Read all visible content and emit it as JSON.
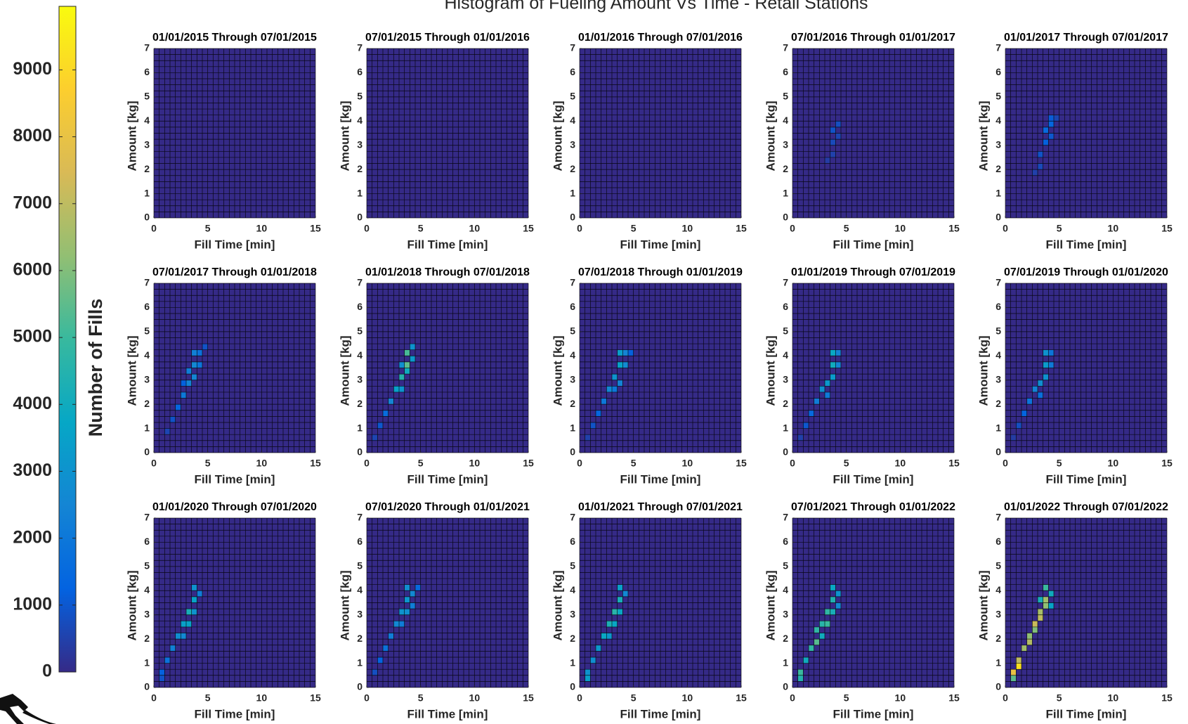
{
  "figure": {
    "title": "Histogram of Fueling Amount Vs Time - Retail Stations",
    "colorbar": {
      "label": "Number of Fills",
      "clim": [
        0,
        9950
      ],
      "ticks": [
        0,
        1000,
        2000,
        3000,
        4000,
        5000,
        6000,
        7000,
        8000,
        9000
      ],
      "colormap": "parula"
    }
  },
  "chart_data": [
    {
      "type": "heatmap",
      "title": "01/01/2015 Through 07/01/2015",
      "xlabel": "Fill Time [min]",
      "ylabel": "Amount [kg]",
      "xlim": [
        0,
        15
      ],
      "ylim": [
        0,
        7
      ],
      "xticks": [
        0,
        5,
        10,
        15
      ],
      "yticks": [
        0,
        1,
        2,
        3,
        4,
        5,
        6,
        7
      ],
      "xbin": 0.5,
      "ybin": 0.25,
      "cells": []
    },
    {
      "type": "heatmap",
      "title": "07/01/2015 Through 01/01/2016",
      "xlabel": "Fill Time [min]",
      "ylabel": "Amount [kg]",
      "xlim": [
        0,
        15
      ],
      "ylim": [
        0,
        7
      ],
      "xticks": [
        0,
        5,
        10,
        15
      ],
      "yticks": [
        0,
        1,
        2,
        3,
        4,
        5,
        6,
        7
      ],
      "xbin": 0.5,
      "ybin": 0.25,
      "cells": []
    },
    {
      "type": "heatmap",
      "title": "01/01/2016 Through 07/01/2016",
      "xlabel": "Fill Time [min]",
      "ylabel": "Amount [kg]",
      "xlim": [
        0,
        15
      ],
      "ylim": [
        0,
        7
      ],
      "xticks": [
        0,
        5,
        10,
        15
      ],
      "yticks": [
        0,
        1,
        2,
        3,
        4,
        5,
        6,
        7
      ],
      "xbin": 0.5,
      "ybin": 0.25,
      "cells": []
    },
    {
      "type": "heatmap",
      "title": "07/01/2016 Through 01/01/2017",
      "xlabel": "Fill Time [min]",
      "ylabel": "Amount [kg]",
      "xlim": [
        0,
        15
      ],
      "ylim": [
        0,
        7
      ],
      "xticks": [
        0,
        5,
        10,
        15
      ],
      "yticks": [
        0,
        1,
        2,
        3,
        4,
        5,
        6,
        7
      ],
      "xbin": 0.5,
      "ybin": 0.25,
      "cells": [
        [
          3.5,
          3,
          700
        ],
        [
          3.5,
          3.5,
          900
        ],
        [
          4,
          3.75,
          800
        ],
        [
          3.5,
          2.5,
          500
        ],
        [
          3,
          2.25,
          400
        ],
        [
          4,
          3.25,
          600
        ]
      ]
    },
    {
      "type": "heatmap",
      "title": "01/01/2017 Through 07/01/2017",
      "xlabel": "Fill Time [min]",
      "ylabel": "Amount [kg]",
      "xlim": [
        0,
        15
      ],
      "ylim": [
        0,
        7
      ],
      "xticks": [
        0,
        5,
        10,
        15
      ],
      "yticks": [
        0,
        1,
        2,
        3,
        4,
        5,
        6,
        7
      ],
      "xbin": 0.5,
      "ybin": 0.25,
      "cells": [
        [
          3.5,
          3,
          1200
        ],
        [
          3.5,
          3.5,
          1500
        ],
        [
          4,
          3.75,
          1400
        ],
        [
          4,
          4,
          1100
        ],
        [
          3,
          2.5,
          900
        ],
        [
          3,
          2,
          700
        ],
        [
          2.5,
          1.75,
          500
        ],
        [
          4,
          3.25,
          1000
        ],
        [
          4.5,
          4,
          600
        ]
      ]
    },
    {
      "type": "heatmap",
      "title": "07/01/2017 Through 01/01/2018",
      "xlabel": "Fill Time [min]",
      "ylabel": "Amount [kg]",
      "xlim": [
        0,
        15
      ],
      "ylim": [
        0,
        7
      ],
      "xticks": [
        0,
        5,
        10,
        15
      ],
      "yticks": [
        0,
        1,
        2,
        3,
        4,
        5,
        6,
        7
      ],
      "xbin": 0.5,
      "ybin": 0.25,
      "cells": [
        [
          1,
          0.75,
          600
        ],
        [
          1.5,
          1.25,
          900
        ],
        [
          2,
          1.75,
          1400
        ],
        [
          2.5,
          2.25,
          2000
        ],
        [
          3,
          2.75,
          2400
        ],
        [
          3,
          3.25,
          2200
        ],
        [
          3.5,
          3.5,
          2600
        ],
        [
          3.5,
          4,
          2300
        ],
        [
          4,
          4,
          1800
        ],
        [
          4,
          3.5,
          1900
        ],
        [
          3.5,
          3,
          2500
        ],
        [
          2.5,
          2.75,
          1200
        ],
        [
          4.5,
          4.25,
          900
        ]
      ]
    },
    {
      "type": "heatmap",
      "title": "01/01/2018 Through 07/01/2018",
      "xlabel": "Fill Time [min]",
      "ylabel": "Amount [kg]",
      "xlim": [
        0,
        15
      ],
      "ylim": [
        0,
        7
      ],
      "xticks": [
        0,
        5,
        10,
        15
      ],
      "yticks": [
        0,
        1,
        2,
        3,
        4,
        5,
        6,
        7
      ],
      "xbin": 0.5,
      "ybin": 0.25,
      "cells": [
        [
          0.5,
          0.5,
          600
        ],
        [
          1,
          1,
          1000
        ],
        [
          1.5,
          1.5,
          1600
        ],
        [
          2,
          2,
          2500
        ],
        [
          2.5,
          2.5,
          3500
        ],
        [
          3,
          3,
          4500
        ],
        [
          3,
          2.5,
          3000
        ],
        [
          3.5,
          3.5,
          5500
        ],
        [
          3.5,
          4,
          5200
        ],
        [
          3.5,
          3.25,
          4000
        ],
        [
          4,
          4.25,
          3000
        ],
        [
          4,
          3.75,
          3200
        ],
        [
          3,
          3.5,
          2800
        ]
      ]
    },
    {
      "type": "heatmap",
      "title": "07/01/2018 Through 01/01/2019",
      "xlabel": "Fill Time [min]",
      "ylabel": "Amount [kg]",
      "xlim": [
        0,
        15
      ],
      "ylim": [
        0,
        7
      ],
      "xticks": [
        0,
        5,
        10,
        15
      ],
      "yticks": [
        0,
        1,
        2,
        3,
        4,
        5,
        6,
        7
      ],
      "xbin": 0.5,
      "ybin": 0.25,
      "cells": [
        [
          0.5,
          0.5,
          500
        ],
        [
          1,
          1,
          900
        ],
        [
          1.5,
          1.5,
          1400
        ],
        [
          2,
          2,
          2000
        ],
        [
          2.5,
          2.5,
          2600
        ],
        [
          3,
          3,
          3000
        ],
        [
          3.5,
          3.5,
          3600
        ],
        [
          3.5,
          4,
          3400
        ],
        [
          3.5,
          2.75,
          2400
        ],
        [
          4,
          4,
          2500
        ],
        [
          4,
          3.5,
          2700
        ],
        [
          3,
          2.5,
          2000
        ],
        [
          4.5,
          4,
          1200
        ]
      ]
    },
    {
      "type": "heatmap",
      "title": "01/01/2019 Through 07/01/2019",
      "xlabel": "Fill Time [min]",
      "ylabel": "Amount [kg]",
      "xlim": [
        0,
        15
      ],
      "ylim": [
        0,
        7
      ],
      "xticks": [
        0,
        5,
        10,
        15
      ],
      "yticks": [
        0,
        1,
        2,
        3,
        4,
        5,
        6,
        7
      ],
      "xbin": 0.5,
      "ybin": 0.25,
      "cells": [
        [
          0.5,
          0.5,
          500
        ],
        [
          1,
          1,
          1000
        ],
        [
          1.5,
          1.5,
          1500
        ],
        [
          2,
          2,
          2200
        ],
        [
          2.5,
          2.5,
          2800
        ],
        [
          3,
          2.75,
          3200
        ],
        [
          3.5,
          3.5,
          4000
        ],
        [
          3.5,
          4,
          3800
        ],
        [
          3.5,
          3,
          3300
        ],
        [
          4,
          4,
          2400
        ],
        [
          4,
          3.5,
          2500
        ],
        [
          3,
          2.25,
          2100
        ]
      ]
    },
    {
      "type": "heatmap",
      "title": "07/01/2019 Through 01/01/2020",
      "xlabel": "Fill Time [min]",
      "ylabel": "Amount [kg]",
      "xlim": [
        0,
        15
      ],
      "ylim": [
        0,
        7
      ],
      "xticks": [
        0,
        5,
        10,
        15
      ],
      "yticks": [
        0,
        1,
        2,
        3,
        4,
        5,
        6,
        7
      ],
      "xbin": 0.5,
      "ybin": 0.25,
      "cells": [
        [
          0.5,
          0.5,
          400
        ],
        [
          1,
          1,
          800
        ],
        [
          1.5,
          1.5,
          1300
        ],
        [
          2,
          2,
          1900
        ],
        [
          2.5,
          2.5,
          2400
        ],
        [
          3,
          2.75,
          2800
        ],
        [
          3.5,
          3.5,
          3300
        ],
        [
          3.5,
          4,
          3000
        ],
        [
          3.5,
          3,
          2900
        ],
        [
          4,
          4,
          1900
        ],
        [
          4,
          3.5,
          2100
        ],
        [
          3,
          2.25,
          1700
        ]
      ]
    },
    {
      "type": "heatmap",
      "title": "01/01/2020 Through 07/01/2020",
      "xlabel": "Fill Time [min]",
      "ylabel": "Amount [kg]",
      "xlim": [
        0,
        15
      ],
      "ylim": [
        0,
        7
      ],
      "xticks": [
        0,
        5,
        10,
        15
      ],
      "yticks": [
        0,
        1,
        2,
        3,
        4,
        5,
        6,
        7
      ],
      "xbin": 0.5,
      "ybin": 0.25,
      "cells": [
        [
          0.5,
          0.25,
          900
        ],
        [
          0.5,
          0.5,
          1200
        ],
        [
          1,
          1,
          1800
        ],
        [
          1.5,
          1.5,
          2300
        ],
        [
          2,
          2,
          2800
        ],
        [
          2.5,
          2.5,
          3500
        ],
        [
          3,
          3,
          4200
        ],
        [
          3,
          2.5,
          3600
        ],
        [
          3.5,
          3.5,
          3600
        ],
        [
          3.5,
          4,
          3000
        ],
        [
          4,
          3.75,
          2200
        ],
        [
          2.5,
          2,
          2600
        ],
        [
          3.5,
          3,
          3000
        ]
      ]
    },
    {
      "type": "heatmap",
      "title": "07/01/2020 Through 01/01/2021",
      "xlabel": "Fill Time [min]",
      "ylabel": "Amount [kg]",
      "xlim": [
        0,
        15
      ],
      "ylim": [
        0,
        7
      ],
      "xticks": [
        0,
        5,
        10,
        15
      ],
      "yticks": [
        0,
        1,
        2,
        3,
        4,
        5,
        6,
        7
      ],
      "xbin": 0.5,
      "ybin": 0.25,
      "cells": [
        [
          0.5,
          0.5,
          800
        ],
        [
          1,
          1,
          1300
        ],
        [
          1.5,
          1.5,
          1800
        ],
        [
          2,
          2,
          2200
        ],
        [
          2.5,
          2.5,
          2600
        ],
        [
          3,
          3,
          3000
        ],
        [
          3.5,
          3.5,
          3100
        ],
        [
          3.5,
          4,
          2800
        ],
        [
          4,
          3.75,
          2600
        ],
        [
          3.5,
          3,
          2800
        ],
        [
          4,
          3.25,
          2200
        ],
        [
          4.5,
          4,
          1500
        ],
        [
          3,
          2.5,
          2200
        ]
      ]
    },
    {
      "type": "heatmap",
      "title": "01/01/2021 Through 07/01/2021",
      "xlabel": "Fill Time [min]",
      "ylabel": "Amount [kg]",
      "xlim": [
        0,
        15
      ],
      "ylim": [
        0,
        7
      ],
      "xticks": [
        0,
        5,
        10,
        15
      ],
      "yticks": [
        0,
        1,
        2,
        3,
        4,
        5,
        6,
        7
      ],
      "xbin": 0.5,
      "ybin": 0.25,
      "cells": [
        [
          0.5,
          0.25,
          3500
        ],
        [
          0.5,
          0.5,
          3000
        ],
        [
          1,
          1,
          2800
        ],
        [
          1.5,
          1.5,
          3200
        ],
        [
          2,
          2,
          3800
        ],
        [
          2.5,
          2.5,
          4300
        ],
        [
          3,
          3,
          4600
        ],
        [
          3,
          2.5,
          3800
        ],
        [
          3.5,
          3.5,
          4200
        ],
        [
          3.5,
          4,
          3500
        ],
        [
          4,
          3.75,
          2600
        ],
        [
          2.5,
          2,
          3200
        ],
        [
          3.5,
          3,
          3800
        ]
      ]
    },
    {
      "type": "heatmap",
      "title": "07/01/2021 Through 01/01/2022",
      "xlabel": "Fill Time [min]",
      "ylabel": "Amount [kg]",
      "xlim": [
        0,
        15
      ],
      "ylim": [
        0,
        7
      ],
      "xticks": [
        0,
        5,
        10,
        15
      ],
      "yticks": [
        0,
        1,
        2,
        3,
        4,
        5,
        6,
        7
      ],
      "xbin": 0.5,
      "ybin": 0.25,
      "cells": [
        [
          0.5,
          0.25,
          4500
        ],
        [
          0.5,
          0.5,
          5000
        ],
        [
          1,
          1,
          4000
        ],
        [
          1.5,
          1.5,
          4800
        ],
        [
          2,
          1.75,
          5400
        ],
        [
          2,
          2.25,
          4800
        ],
        [
          2.5,
          2.5,
          4600
        ],
        [
          3,
          3,
          4800
        ],
        [
          3,
          2.5,
          5000
        ],
        [
          3.5,
          3.5,
          4400
        ],
        [
          3.5,
          4,
          3800
        ],
        [
          4,
          3.75,
          3000
        ],
        [
          3.5,
          3,
          4200
        ],
        [
          2.5,
          2,
          4000
        ],
        [
          4,
          3.25,
          2600
        ]
      ]
    },
    {
      "type": "heatmap",
      "title": "01/01/2022 Through 07/01/2022",
      "xlabel": "Fill Time [min]",
      "ylabel": "Amount [kg]",
      "xlim": [
        0,
        15
      ],
      "ylim": [
        0,
        7
      ],
      "xticks": [
        0,
        5,
        10,
        15
      ],
      "yticks": [
        0,
        1,
        2,
        3,
        4,
        5,
        6,
        7
      ],
      "xbin": 0.5,
      "ybin": 0.25,
      "cells": [
        [
          0.5,
          0.25,
          5500
        ],
        [
          0.5,
          0.5,
          8000
        ],
        [
          1,
          0.75,
          9200
        ],
        [
          1,
          1,
          7000
        ],
        [
          1.5,
          1.5,
          6500
        ],
        [
          2,
          2,
          6200
        ],
        [
          2,
          1.75,
          6800
        ],
        [
          2.5,
          2.5,
          7200
        ],
        [
          2.5,
          2.25,
          6000
        ],
        [
          3,
          2.75,
          7000
        ],
        [
          3,
          3,
          6600
        ],
        [
          3.5,
          3.5,
          6500
        ],
        [
          3.5,
          3.25,
          6200
        ],
        [
          3.5,
          4,
          5000
        ],
        [
          4,
          3.75,
          4000
        ],
        [
          4,
          3.25,
          3600
        ],
        [
          3,
          3.5,
          4200
        ]
      ]
    }
  ]
}
